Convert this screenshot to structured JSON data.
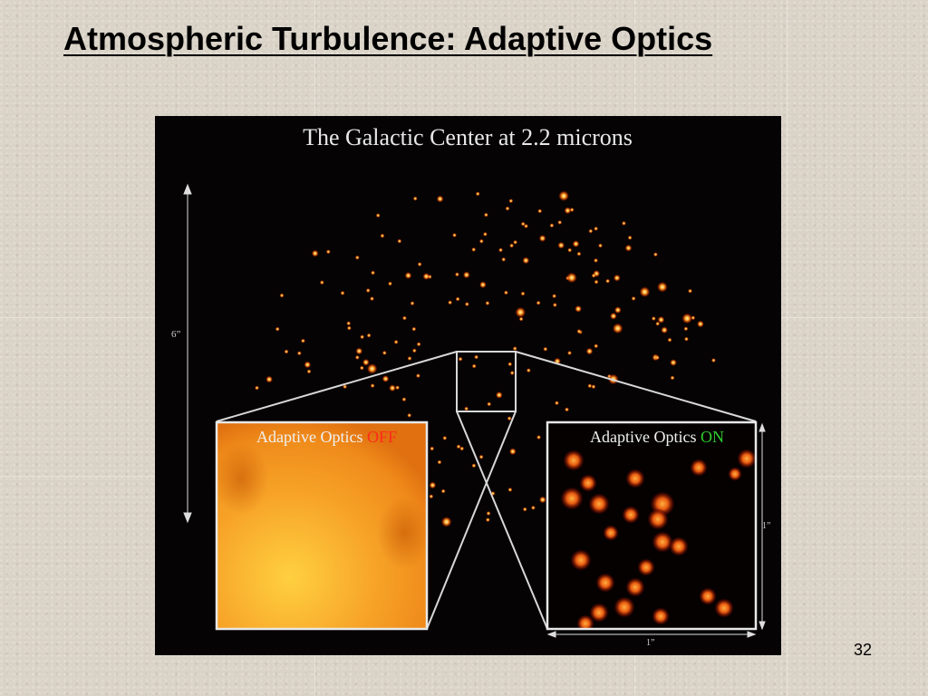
{
  "slide": {
    "title": "Atmospheric Turbulence: Adaptive Optics",
    "page_number": "32"
  },
  "figure": {
    "title": "The Galactic Center at 2.2 microns",
    "scale_bar_large": "6”",
    "scale_bar_small_vertical": "1”",
    "scale_bar_small_horizontal": "1”",
    "inset_off": {
      "prefix": "Adaptive Optics ",
      "state": "OFF",
      "state_color": "#ff2a1a"
    },
    "inset_on": {
      "prefix": "Adaptive Optics ",
      "state": "ON",
      "state_color": "#2ecc2e"
    }
  },
  "colors": {
    "star_core": "#ffe2a0",
    "star_glow": "#ff6a10",
    "off_blur": "#f5a020"
  }
}
